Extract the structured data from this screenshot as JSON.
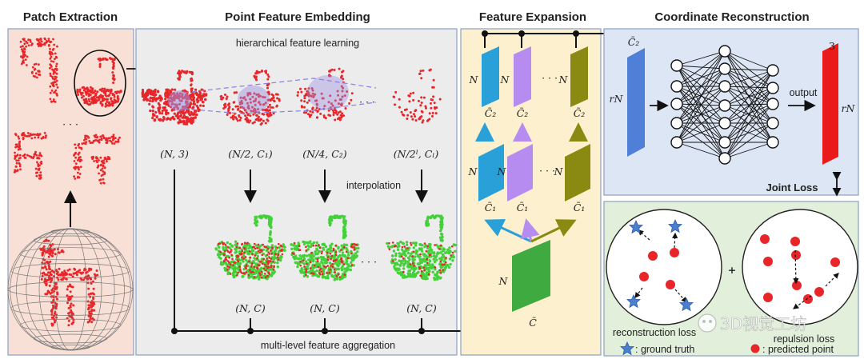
{
  "headers": {
    "patch_extraction": "Patch Extraction",
    "point_feature_embedding": "Point Feature Embedding",
    "feature_expansion": "Feature Expansion",
    "coordinate_reconstruction": "Coordinate Reconstruction"
  },
  "embedding": {
    "hierarchical": "hierarchical feature learning",
    "interpolation": "interpolation",
    "aggregation": "multi-level feature aggregation",
    "levels": [
      "(N, 3)",
      "(N/2, C₁)",
      "(N/4, C₂)",
      "(N/2ˡ, Cₗ)"
    ],
    "interp_levels": [
      "(N, C)",
      "(N, C)",
      "(N, C)"
    ]
  },
  "expansion": {
    "N": "N",
    "C_tilde": "C̃",
    "C1_tilde": "C̃₁",
    "C2_tilde": "C̃₂",
    "ellipsis": "· · ·",
    "colors": {
      "blue": "#2aa0d8",
      "purple": "#b68cf0",
      "olive": "#8a8a12",
      "green": "#3faa3f"
    }
  },
  "reconstruction": {
    "rN": "rN",
    "C2_tilde": "C̃₂",
    "output": "output",
    "three": "3",
    "joint_loss": "Joint Loss"
  },
  "loss": {
    "reconstruction_loss": "reconstruction loss",
    "repulsion_loss": "repulsion loss",
    "ground_truth": ": ground truth",
    "predicted_point": ": predicted point"
  },
  "watermark": "3D视觉工坊",
  "colors": {
    "panel_pink": "#f9e0d6",
    "panel_gray": "#ececec",
    "panel_yellow": "#fdf0cf",
    "panel_blue": "#dde6f4",
    "panel_green": "#e2efda",
    "points_red": "#e8262a",
    "points_green": "#43d13a",
    "star_blue": "#4a7fd0",
    "output_red": "#ea1a1a",
    "layer_blue": "#4f7fd6"
  }
}
